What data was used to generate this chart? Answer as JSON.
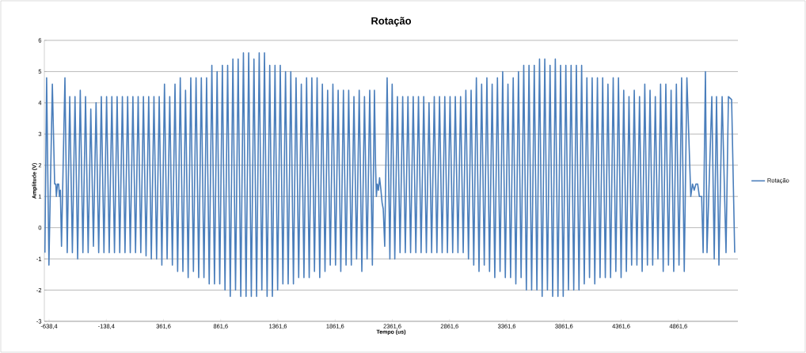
{
  "chart_data": {
    "type": "line",
    "title": "Rotação",
    "xlabel": "Tempo (us)",
    "ylabel": "Amplitude (V)",
    "xlim": [
      -680,
      5382
    ],
    "ylim": [
      -3,
      6
    ],
    "xticks": [
      {
        "value": -638.4,
        "label": "-638,4"
      },
      {
        "value": -138.4,
        "label": "-138,4"
      },
      {
        "value": 361.6,
        "label": "361,6"
      },
      {
        "value": 861.6,
        "label": "861,6"
      },
      {
        "value": 1361.6,
        "label": "1361,6"
      },
      {
        "value": 1861.6,
        "label": "1861,6"
      },
      {
        "value": 2361.6,
        "label": "2361,6"
      },
      {
        "value": 2861.6,
        "label": "2861,6"
      },
      {
        "value": 3361.6,
        "label": "3361,6"
      },
      {
        "value": 3861.6,
        "label": "3861,6"
      },
      {
        "value": 4361.6,
        "label": "4361,6"
      },
      {
        "value": 4861.6,
        "label": "4861,6"
      }
    ],
    "yticks": [
      -3,
      -2,
      -1,
      0,
      1,
      2,
      3,
      4,
      5,
      6
    ],
    "grid": "y",
    "legend": "right",
    "series": [
      {
        "name": "Rotação",
        "color": "#4a7ebb",
        "x": [
          -675,
          -660,
          -640,
          -610,
          -590,
          -580,
          -575,
          -565,
          -555,
          -548,
          -540,
          -530,
          -500,
          -480,
          -458,
          -435,
          -412,
          -389,
          -366,
          -343,
          -320,
          -297,
          -274,
          -251,
          -228,
          -205,
          -182,
          -159,
          -136,
          -113,
          -90,
          -67,
          -44,
          -21,
          2,
          25,
          48,
          71,
          94,
          117,
          140,
          163,
          186,
          209,
          232,
          255,
          278,
          301,
          324,
          347,
          370,
          393,
          416,
          439,
          462,
          485,
          508,
          531,
          554,
          577,
          600,
          623,
          646,
          669,
          692,
          715,
          738,
          761,
          784,
          807,
          830,
          853,
          876,
          899,
          922,
          945,
          968,
          991,
          1014,
          1037,
          1060,
          1083,
          1106,
          1129,
          1152,
          1175,
          1198,
          1221,
          1244,
          1267,
          1290,
          1313,
          1336,
          1359,
          1382,
          1405,
          1428,
          1451,
          1474,
          1497,
          1520,
          1543,
          1566,
          1589,
          1612,
          1635,
          1658,
          1681,
          1704,
          1727,
          1750,
          1773,
          1796,
          1819,
          1842,
          1865,
          1888,
          1911,
          1934,
          1957,
          1980,
          2003,
          2026,
          2049,
          2072,
          2095,
          2118,
          2141,
          2164,
          2187,
          2205,
          2215,
          2222,
          2230,
          2240,
          2250,
          2262,
          2272,
          2282,
          2295,
          2316,
          2340,
          2360,
          2383,
          2406,
          2429,
          2452,
          2475,
          2498,
          2521,
          2544,
          2567,
          2590,
          2613,
          2636,
          2659,
          2682,
          2705,
          2728,
          2751,
          2774,
          2797,
          2820,
          2843,
          2866,
          2889,
          2912,
          2935,
          2958,
          2981,
          3004,
          3027,
          3050,
          3073,
          3096,
          3119,
          3142,
          3165,
          3188,
          3211,
          3234,
          3257,
          3280,
          3303,
          3326,
          3349,
          3372,
          3395,
          3418,
          3441,
          3464,
          3487,
          3510,
          3533,
          3556,
          3579,
          3602,
          3625,
          3648,
          3671,
          3694,
          3717,
          3740,
          3763,
          3786,
          3809,
          3832,
          3855,
          3878,
          3901,
          3924,
          3947,
          3970,
          3993,
          4016,
          4039,
          4062,
          4085,
          4108,
          4131,
          4154,
          4177,
          4200,
          4223,
          4246,
          4269,
          4292,
          4315,
          4338,
          4361,
          4384,
          4407,
          4430,
          4453,
          4476,
          4499,
          4522,
          4545,
          4568,
          4591,
          4614,
          4637,
          4660,
          4683,
          4706,
          4729,
          4752,
          4775,
          4798,
          4821,
          4844,
          4867,
          4890,
          4913,
          4936,
          4970,
          4985,
          5000,
          5015,
          5030,
          5045,
          5065,
          5078,
          5098,
          5112,
          5154,
          5175,
          5195,
          5216,
          5244,
          5278,
          5299,
          5327,
          5354
        ],
        "values": [
          -0.8,
          4.8,
          -1.2,
          4.6,
          1.4,
          1.4,
          1.0,
          1.4,
          1.4,
          1.0,
          1.2,
          -0.6,
          4.8,
          -0.8,
          4.2,
          -0.8,
          4.2,
          -1.0,
          4.4,
          -0.8,
          4.2,
          -0.8,
          3.8,
          -0.6,
          4.0,
          -0.8,
          4.2,
          -0.8,
          4.2,
          -0.8,
          4.2,
          -0.8,
          4.2,
          -0.8,
          4.2,
          -0.8,
          4.2,
          -0.8,
          4.2,
          -0.8,
          4.2,
          -0.8,
          4.2,
          -0.9,
          4.2,
          -1.0,
          4.2,
          -1.0,
          4.2,
          -1.2,
          4.6,
          -1.0,
          4.2,
          -1.2,
          4.6,
          -1.4,
          4.8,
          -1.4,
          4.4,
          -1.6,
          4.8,
          -1.4,
          4.8,
          -1.6,
          4.8,
          -1.6,
          4.8,
          -1.8,
          5.2,
          -1.8,
          5.0,
          -1.8,
          5.2,
          -2.0,
          5.2,
          -2.2,
          5.4,
          -2.0,
          5.4,
          -2.2,
          5.6,
          -2.2,
          5.6,
          -2.2,
          5.4,
          -2.2,
          5.6,
          -2.0,
          5.6,
          -2.2,
          5.2,
          -2.2,
          5.2,
          -2.0,
          5.2,
          -1.8,
          5.0,
          -1.8,
          5.0,
          -1.8,
          4.8,
          -1.6,
          4.6,
          -1.6,
          4.8,
          -1.6,
          4.8,
          -1.4,
          4.8,
          -1.6,
          4.6,
          -1.4,
          4.4,
          -1.2,
          4.6,
          -1.2,
          4.4,
          -1.4,
          4.4,
          -1.2,
          4.4,
          -1.2,
          4.2,
          -1.0,
          4.4,
          -1.4,
          4.2,
          -1.0,
          4.4,
          -1.2,
          4.4,
          2.0,
          1.0,
          1.4,
          1.2,
          1.6,
          1.2,
          0.8,
          0.6,
          -0.6,
          4.8,
          -1.0,
          4.6,
          -1.0,
          4.2,
          -0.8,
          4.2,
          -0.8,
          4.2,
          -0.8,
          4.2,
          -0.8,
          4.2,
          -0.8,
          4.2,
          -0.8,
          4.0,
          -0.8,
          4.2,
          -0.8,
          4.2,
          -0.8,
          4.2,
          -0.8,
          4.2,
          -0.8,
          4.2,
          -0.8,
          4.2,
          -0.8,
          4.4,
          -1.0,
          4.4,
          -1.2,
          4.8,
          -1.4,
          4.6,
          -1.2,
          4.8,
          -1.4,
          4.6,
          -1.6,
          4.8,
          -1.4,
          5.0,
          -1.6,
          4.6,
          -1.6,
          4.8,
          -1.8,
          5.0,
          -1.6,
          5.2,
          -2.0,
          5.2,
          -2.0,
          5.2,
          -2.0,
          5.4,
          -2.2,
          5.4,
          -2.0,
          5.2,
          -2.2,
          5.4,
          -2.2,
          5.2,
          -2.2,
          5.2,
          -2.0,
          5.2,
          -2.0,
          5.2,
          -2.0,
          5.2,
          -1.8,
          4.8,
          -1.6,
          4.8,
          -1.8,
          4.8,
          -1.6,
          4.8,
          -1.6,
          4.6,
          -1.6,
          4.8,
          -1.4,
          4.8,
          -1.6,
          4.4,
          -1.4,
          4.2,
          -1.2,
          4.4,
          -1.2,
          4.2,
          -1.4,
          4.6,
          -1.2,
          4.4,
          -1.2,
          4.2,
          -1.0,
          4.6,
          -1.4,
          4.6,
          -1.2,
          4.4,
          -1.4,
          4.6,
          -1.2,
          4.8,
          -1.4,
          4.8,
          1.0,
          1.4,
          1.2,
          1.4,
          1.4,
          1.0,
          1.0,
          -0.8,
          5.0,
          -0.8,
          4.2,
          -1.0,
          4.2,
          -1.2,
          4.2,
          -0.8,
          4.2,
          4.1,
          -0.8
        ]
      }
    ]
  }
}
